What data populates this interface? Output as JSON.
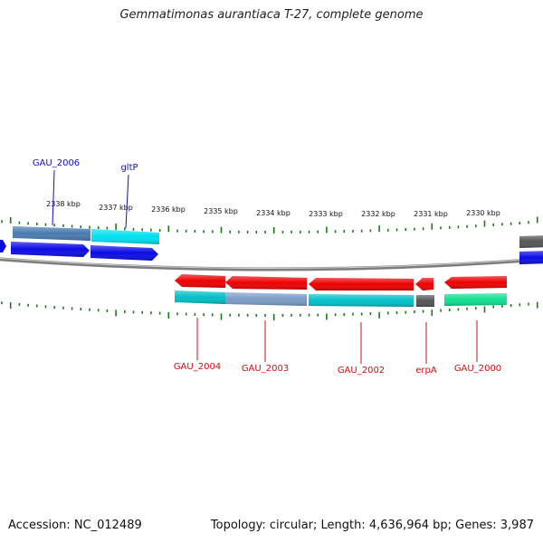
{
  "title": "Gemmatimonas aurantiaca T-27, complete genome",
  "footer": {
    "accession": "Accession: NC_012489",
    "summary": "Topology: circular; Length: 4,636,964 bp; Genes: 3,987"
  },
  "scale_labels": [
    "2338 kbp",
    "2337 kbp",
    "2336 kbp",
    "2335 kbp",
    "2334 kbp",
    "2333 kbp",
    "2332 kbp",
    "2331 kbp",
    "2330 kbp"
  ],
  "gene_labels": {
    "top": [
      "GAU_2006",
      "gltP"
    ],
    "bottom": [
      "GAU_2004",
      "GAU_2003",
      "GAU_2002",
      "erpA",
      "GAU_2000"
    ]
  },
  "colors": {
    "forward_label": "#1010c0",
    "reverse_label": "#d01010",
    "tick": "#1a7a1a",
    "backbone": "#888888",
    "blue": "#0a0ae6",
    "steelblue": "#4a7ab0",
    "cyan": "#00e0f0",
    "red": "#ee0000",
    "teal": "#00c0c8",
    "lightsteel": "#7a9cc8",
    "gray": "#555555",
    "green": "#10e090"
  }
}
